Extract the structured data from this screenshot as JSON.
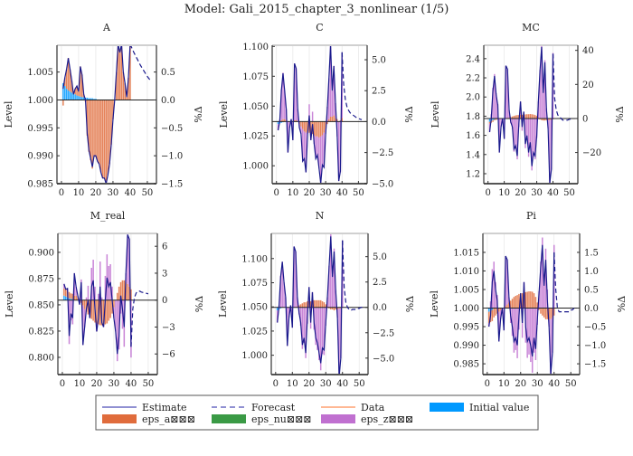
{
  "title": "Model: Gali_2015_chapter_3_nonlinear  (1/5)",
  "legend": {
    "placement": "bottom",
    "items": [
      {
        "label": "Estimate",
        "kind": "line",
        "color": "#6b6bc4"
      },
      {
        "label": "Forecast",
        "kind": "dash",
        "color": "#6b6bc4"
      },
      {
        "label": "Data",
        "kind": "line",
        "color": "#ffa070"
      },
      {
        "label": "Initial value",
        "kind": "patch",
        "color": "#0099ff"
      },
      {
        "label": "eps_a⊠⊠⊠",
        "kind": "patch",
        "color": "#e06c3c"
      },
      {
        "label": "eps_nu⊠⊠⊠",
        "kind": "patch",
        "color": "#3a9a45"
      },
      {
        "label": "eps_z⊠⊠⊠",
        "kind": "patch",
        "color": "#c070d0"
      }
    ]
  },
  "colors": {
    "estimate": "#1a1a8c",
    "forecast": "#1a1a8c",
    "initial": "#0099ff",
    "eps_a": "#e06c3c",
    "eps_nu": "#3a9a45",
    "eps_z": "#c070d0"
  },
  "chart_data": [
    {
      "type": "bar+line",
      "title": "A",
      "ylabel": "Level",
      "y2label": "%Δ",
      "steady_state": 1.0,
      "ylim": [
        0.985,
        1.0098
      ],
      "xlim": [
        -2.6,
        55.3
      ],
      "xticks": [
        "0",
        "10",
        "20",
        "30",
        "40",
        "50"
      ],
      "yticks": [
        "0.985",
        "0.990",
        "0.995",
        "1.000",
        "1.005"
      ],
      "y2ticks": [
        "−1.5",
        "−1.0",
        "−0.5",
        "0.0",
        "0.5"
      ],
      "estimate_periods": [
        1,
        40
      ],
      "forecast_periods": [
        40,
        52
      ],
      "estimate": [
        0.2,
        0.4,
        0.55,
        0.75,
        0.55,
        0.35,
        0.1,
        0.2,
        0.25,
        0.15,
        0.6,
        0.45,
        0.1,
        0.0,
        -0.6,
        -0.9,
        -1.05,
        -1.2,
        -1.0,
        -1.0,
        -1.1,
        -1.15,
        -1.3,
        -1.4,
        -1.4,
        -1.5,
        -1.35,
        -1.15,
        -0.8,
        -0.35,
        0.0,
        0.5,
        1.0,
        0.85,
        1.0,
        0.5,
        0.3,
        0.05,
        0.4,
        1.0
      ],
      "forecast": [
        1.0,
        0.93,
        0.86,
        0.8,
        0.74,
        0.68,
        0.62,
        0.57,
        0.52,
        0.47,
        0.42,
        0.38,
        0.34
      ],
      "initial_value": [
        0.3,
        0.25,
        0.2,
        0.17,
        0.15,
        0.13,
        0.11,
        0.1,
        0.08,
        0.07,
        0.06,
        0.05,
        0.05,
        0.04,
        0.04,
        0.03,
        0.03,
        0.03,
        0.02,
        0.02
      ],
      "residual_shock": "eps_a",
      "eps_z": []
    },
    {
      "type": "bar+line",
      "title": "C",
      "ylabel": "Level",
      "y2label": "%Δ",
      "steady_state": 1.037,
      "ylim": [
        0.985,
        1.101
      ],
      "xlim": [
        -2.6,
        55.3
      ],
      "xticks": [
        "0",
        "10",
        "20",
        "30",
        "40",
        "50"
      ],
      "yticks": [
        "1.000",
        "1.025",
        "1.050",
        "1.075",
        "1.100"
      ],
      "y2ticks": [
        "−5.0",
        "−2.5",
        "0.0",
        "2.5",
        "5.0"
      ],
      "estimate_periods": [
        1,
        40
      ],
      "forecast_periods": [
        40,
        52
      ],
      "estimate": [
        -0.7,
        0,
        2.5,
        3.9,
        2.5,
        1.0,
        -2.5,
        -0.5,
        0.2,
        -1.5,
        4.7,
        4.3,
        1.0,
        -0.5,
        -1.0,
        -3.2,
        -3.0,
        -4.1,
        -1.0,
        0.5,
        -1.5,
        -0.2,
        -1.8,
        -3.0,
        -2.7,
        -3.8,
        -5.0,
        -3.5,
        -3.7,
        -1.0,
        1.0,
        3.5,
        6.2,
        2.5,
        4.5,
        1.5,
        -1.0,
        -4.8,
        -4.0,
        5.6
      ],
      "forecast": [
        5.6,
        3.0,
        1.8,
        1.2,
        0.9,
        0.7,
        0.6,
        0.5,
        0.4,
        0.3,
        0.25,
        0.2,
        0.15
      ],
      "initial_value": [
        -0.2,
        -0.15,
        -0.1,
        -0.05
      ],
      "eps_a": [
        0,
        0,
        0.1,
        0.2,
        0.2,
        0.1,
        0,
        0,
        0,
        0,
        0.1,
        0.1,
        0,
        -0.2,
        -0.4,
        -0.6,
        -0.8,
        -0.9,
        -0.8,
        -0.9,
        -1.0,
        -1.0,
        -1.1,
        -1.2,
        -1.2,
        -1.3,
        -1.2,
        -1.1,
        -0.9,
        -0.6,
        -0.2,
        0.2,
        0.4,
        0.4,
        0.5,
        0.3,
        0.2,
        0,
        0.1,
        0.3
      ],
      "residual_shock": "eps_z"
    },
    {
      "type": "bar+line",
      "title": "MC",
      "ylabel": "Level",
      "y2label": "%Δ",
      "steady_state": 1.776,
      "ylim": [
        1.096,
        2.54
      ],
      "xlim": [
        -2.6,
        55.3
      ],
      "xticks": [
        "0",
        "10",
        "20",
        "30",
        "40",
        "50"
      ],
      "yticks": [
        "1.2",
        "1.4",
        "1.6",
        "1.8",
        "2.0",
        "2.2",
        "2.4"
      ],
      "y2ticks": [
        "−20",
        "0",
        "20",
        "40"
      ],
      "estimate_periods": [
        1,
        40
      ],
      "forecast_periods": [
        40,
        52
      ],
      "estimate": [
        -8,
        0,
        16,
        25,
        14,
        8,
        -20,
        -5,
        0,
        -12,
        31,
        29,
        5,
        -2,
        -5,
        -18,
        -16,
        -22,
        -3,
        10,
        -5,
        4,
        -15,
        -10,
        -20,
        -14,
        -28,
        -20,
        -22,
        -10,
        10,
        28,
        42,
        15,
        33,
        5,
        -6,
        -38,
        -30,
        38
      ],
      "forecast": [
        38,
        12,
        5,
        2,
        1,
        0,
        -1,
        -1,
        -1,
        -1,
        -0.5,
        -0.3,
        0
      ],
      "initial_value": [
        -2,
        -1.5,
        -1,
        -0.6,
        -0.3
      ],
      "eps_a": [
        -1,
        -1,
        -1,
        -0.5,
        -0.5,
        -0.5,
        -0.3,
        0,
        0,
        0,
        0,
        0.2,
        0.5,
        0.8,
        1.2,
        1.5,
        1.8,
        2,
        2,
        2.2,
        2.2,
        2.3,
        2.4,
        2.5,
        2.5,
        2.6,
        2.5,
        2.3,
        2,
        1.5,
        0.5,
        -0.5,
        -1,
        -1.2,
        -1.2,
        -1,
        -1,
        -0.8,
        -0.8,
        -0.5
      ],
      "residual_shock": "eps_z"
    },
    {
      "type": "bar+line",
      "title": "M_real",
      "ylabel": "Level",
      "y2label": "%Δ",
      "steady_state": 0.8545,
      "ylim": [
        0.7836,
        0.918
      ],
      "xlim": [
        -2.6,
        55.3
      ],
      "xticks": [
        "0",
        "10",
        "20",
        "30",
        "40",
        "50"
      ],
      "yticks": [
        "0.800",
        "0.825",
        "0.850",
        "0.875",
        "0.900"
      ],
      "y2ticks": [
        "−6",
        "−3",
        "0",
        "3",
        "6"
      ],
      "estimate_periods": [
        1,
        40
      ],
      "forecast_periods": [
        40,
        50
      ],
      "estimate": [
        1.8,
        1.2,
        1.3,
        -4,
        -1.5,
        -2,
        3,
        1.5,
        0.5,
        -0.5,
        2,
        -5,
        -3,
        -1,
        0,
        -2,
        1.5,
        2.2,
        -1,
        -3.5,
        -2,
        1.5,
        -2.5,
        -3,
        0,
        2.5,
        1.5,
        2.0,
        0,
        -2,
        -3.5,
        -6,
        -4,
        0.5,
        -1,
        -3,
        3,
        7.3,
        6.8,
        -5.2
      ],
      "forecast": [
        -5.2,
        -1,
        0.3,
        0.8,
        1.0,
        1.0,
        0.9,
        0.85,
        0.8,
        0.75,
        0.7
      ],
      "initial_value": [
        0.5,
        0.4,
        0.3,
        0.2,
        0.15,
        0.1
      ],
      "eps_a": [
        0.8,
        0.8,
        0.7,
        0.7,
        0.6,
        0.6,
        0.5,
        0.5,
        0.3,
        0,
        -0.3,
        -0.6,
        -1,
        -1.3,
        -1.6,
        -1.9,
        -2.1,
        -2.3,
        -2.5,
        -2.6,
        -2.7,
        -2.8,
        -2.8,
        -2.8,
        -2.7,
        -2.6,
        -2.3,
        -2,
        -1.5,
        -0.8,
        0,
        0.8,
        1.5,
        2,
        2.2,
        2.2,
        2,
        1.8,
        1.5,
        1.2
      ],
      "residual_shock": "eps_z"
    },
    {
      "type": "bar+line",
      "title": "N",
      "ylabel": "Level",
      "y2label": "%Δ",
      "steady_state": 1.0495,
      "ylim": [
        0.98,
        1.126
      ],
      "xlim": [
        -2.6,
        55.3
      ],
      "xticks": [
        "0",
        "10",
        "20",
        "30",
        "40",
        "50"
      ],
      "yticks": [
        "1.000",
        "1.025",
        "1.050",
        "1.075",
        "1.100"
      ],
      "y2ticks": [
        "−5.0",
        "−2.5",
        "0.0",
        "2.5",
        "5.0"
      ],
      "estimate_periods": [
        1,
        40
      ],
      "forecast_periods": [
        40,
        52
      ],
      "estimate": [
        -1.5,
        0,
        3,
        4.5,
        2.5,
        1,
        -3.8,
        -1,
        0.2,
        -2,
        6,
        5.5,
        1,
        -0.5,
        -1.5,
        -3.7,
        -3,
        -4.5,
        -1,
        2,
        -1.5,
        1.5,
        -1.5,
        -3,
        -3.5,
        -4.5,
        -5.5,
        -4,
        -4.2,
        -1.5,
        1,
        4,
        7,
        3,
        5.5,
        1.5,
        -1,
        -6.9,
        -5,
        6.6
      ],
      "forecast": [
        6.6,
        2,
        0.5,
        0,
        -0.2,
        -0.3,
        -0.2,
        -0.2,
        -0.2,
        -0.1,
        -0.1,
        0,
        0
      ],
      "initial_value": [
        -0.3,
        -0.2,
        -0.1
      ],
      "eps_a": [
        0,
        0,
        0,
        0,
        0,
        0,
        0,
        0,
        0,
        0,
        0,
        0,
        0.1,
        0.2,
        0.3,
        0.4,
        0.5,
        0.5,
        0.6,
        0.6,
        0.6,
        0.7,
        0.7,
        0.7,
        0.7,
        0.7,
        0.7,
        0.6,
        0.5,
        0.3,
        0.1,
        -0.1,
        -0.2,
        -0.2,
        -0.3,
        -0.2,
        -0.2,
        -0.1,
        -0.1,
        0
      ],
      "residual_shock": "eps_z"
    },
    {
      "type": "bar+line",
      "title": "Pi",
      "ylabel": "Level",
      "y2label": "%Δ",
      "steady_state": 1.0,
      "ylim": [
        0.9821,
        1.0201
      ],
      "xlim": [
        -2.6,
        55.3
      ],
      "xticks": [
        "0",
        "10",
        "20",
        "30",
        "40",
        "50"
      ],
      "yticks": [
        "0.985",
        "0.990",
        "0.995",
        "1.000",
        "1.005",
        "1.010",
        "1.015"
      ],
      "y2ticks": [
        "−1.5",
        "−1.0",
        "−0.5",
        "0.0",
        "0.5",
        "1.0",
        "1.5"
      ],
      "estimate_periods": [
        1,
        40
      ],
      "forecast_periods": [
        40,
        52
      ],
      "estimate": [
        -0.5,
        -0.2,
        0.7,
        1.0,
        0.5,
        0.2,
        -0.9,
        -0.3,
        0,
        -0.6,
        1.4,
        1.3,
        0.3,
        -0.2,
        -0.5,
        -0.9,
        -0.8,
        -1.0,
        -0.2,
        0.4,
        -0.4,
        0.7,
        -0.5,
        -0.9,
        -0.8,
        -1.0,
        -1.3,
        -0.8,
        -1.1,
        -0.3,
        0.4,
        1.1,
        1.7,
        0.6,
        1.3,
        0.2,
        -0.5,
        -1.8,
        -1.2,
        1.5
      ],
      "forecast": [
        1.5,
        0.5,
        0,
        -0.1,
        -0.1,
        -0.1,
        -0.1,
        -0.1,
        -0.1,
        -0.1,
        -0.05,
        -0.05,
        0
      ],
      "initial_value": [
        -0.1,
        -0.08,
        -0.05
      ],
      "eps_a": [
        -0.3,
        -0.3,
        -0.3,
        -0.25,
        -0.2,
        -0.15,
        -0.1,
        -0.05,
        0,
        0,
        0.05,
        0.1,
        0.15,
        0.2,
        0.25,
        0.3,
        0.33,
        0.35,
        0.38,
        0.4,
        0.4,
        0.42,
        0.43,
        0.44,
        0.45,
        0.45,
        0.44,
        0.4,
        0.3,
        0.15,
        -0.05,
        -0.15,
        -0.2,
        -0.25,
        -0.3,
        -0.3,
        -0.3,
        -0.3,
        -0.25,
        -0.2
      ],
      "residual_shock": "eps_z"
    }
  ]
}
